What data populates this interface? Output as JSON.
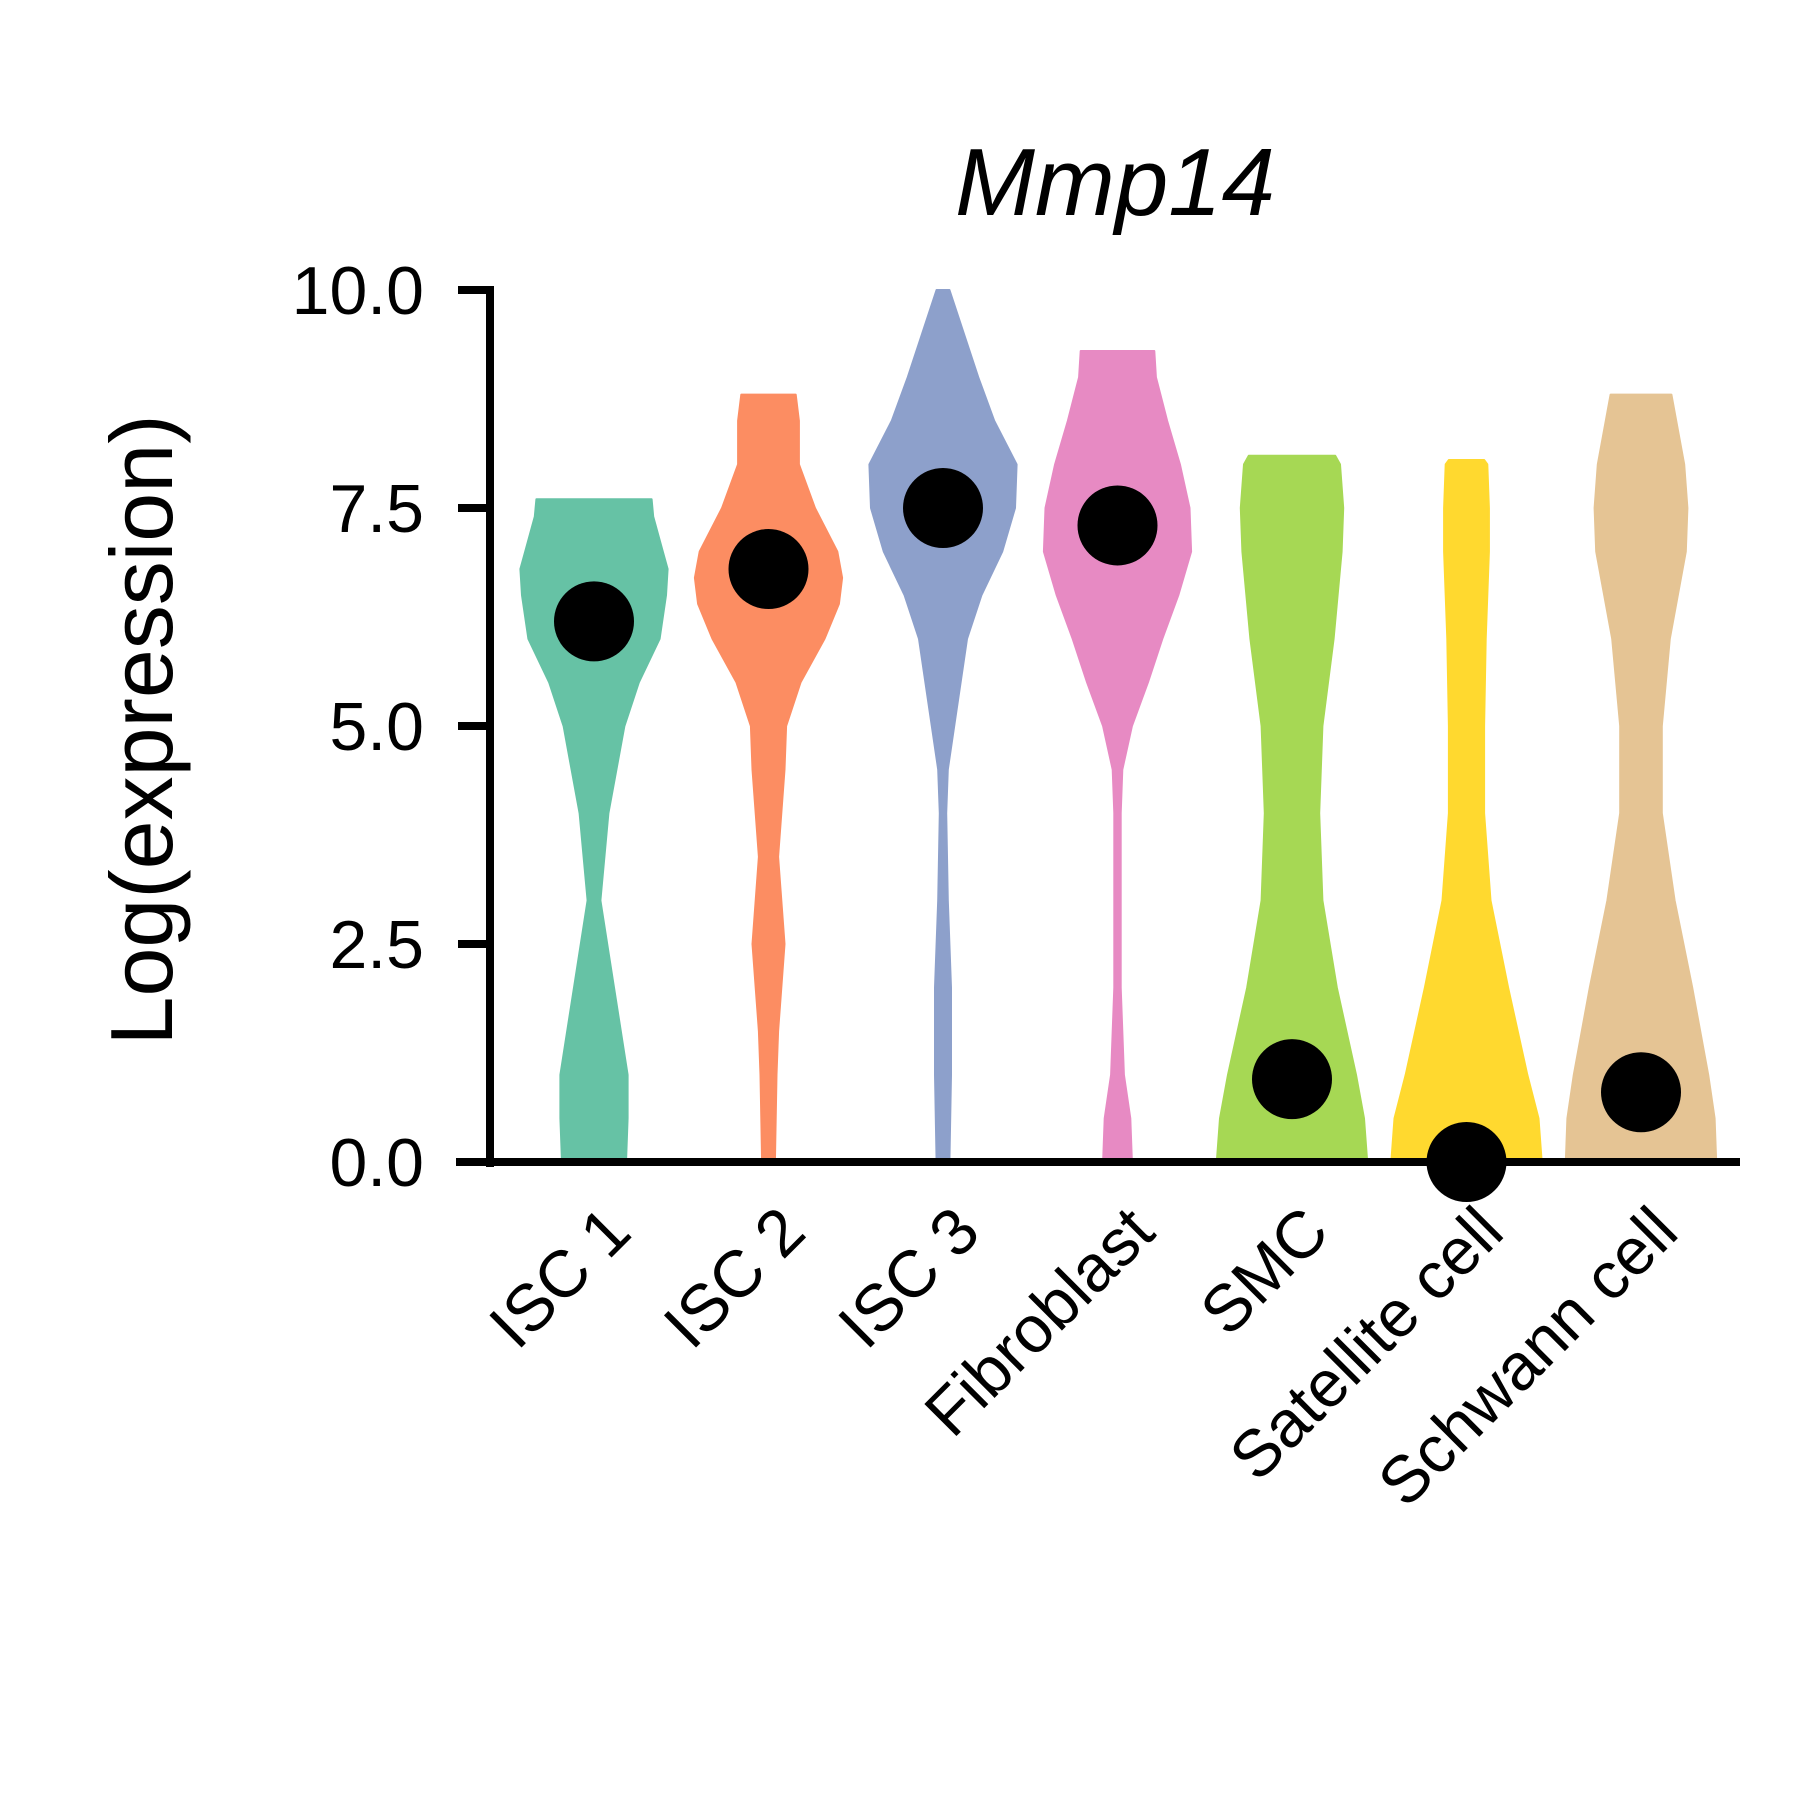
{
  "chart_data": {
    "type": "violin",
    "title": "Mmp14",
    "xlabel": "",
    "ylabel": "Log(expression)",
    "ylim": [
      0,
      10
    ],
    "yticks": [
      "0.0",
      "2.5",
      "5.0",
      "7.5",
      "10.0"
    ],
    "grid": false,
    "legend": "none",
    "categories": [
      "ISC 1",
      "ISC 2",
      "ISC 3",
      "Fibroblast",
      "SMC",
      "Satellite cell",
      "Schwann cell"
    ],
    "colors": [
      "#66C2A5",
      "#FC8D62",
      "#8DA0CB",
      "#E78AC3",
      "#A6D854",
      "#FFD92F",
      "#E5C494"
    ],
    "medians": [
      6.2,
      6.8,
      7.5,
      7.3,
      0.95,
      0.0,
      0.8
    ],
    "violins": [
      {
        "y": [
          0,
          0.5,
          1,
          2,
          3,
          4,
          5,
          5.5,
          6,
          6.5,
          6.8,
          7,
          7.4,
          7.6
        ],
        "w": [
          0.4,
          0.42,
          0.42,
          0.25,
          0.08,
          0.18,
          0.38,
          0.56,
          0.82,
          0.9,
          0.92,
          0.86,
          0.74,
          0.72
        ]
      },
      {
        "y": [
          0,
          1,
          1.5,
          2.5,
          3.5,
          4.5,
          5,
          5.5,
          6,
          6.4,
          6.7,
          7,
          7.5,
          8,
          8.5,
          8.8
        ],
        "w": [
          0.08,
          0.1,
          0.12,
          0.2,
          0.12,
          0.2,
          0.22,
          0.4,
          0.7,
          0.88,
          0.92,
          0.86,
          0.58,
          0.38,
          0.38,
          0.34
        ]
      },
      {
        "y": [
          0,
          1,
          2,
          3,
          4,
          4.5,
          5,
          6,
          6.5,
          7,
          7.5,
          8,
          8.5,
          9,
          9.5,
          10
        ],
        "w": [
          0.08,
          0.1,
          0.1,
          0.06,
          0.04,
          0.06,
          0.14,
          0.3,
          0.48,
          0.74,
          0.9,
          0.92,
          0.64,
          0.44,
          0.26,
          0.08
        ]
      },
      {
        "y": [
          0,
          0.5,
          1,
          2,
          3,
          4,
          4.5,
          5,
          5.5,
          6,
          6.5,
          7,
          7.5,
          8,
          8.5,
          9,
          9.3
        ],
        "w": [
          0.18,
          0.16,
          0.08,
          0.04,
          0.04,
          0.04,
          0.06,
          0.18,
          0.38,
          0.56,
          0.76,
          0.92,
          0.9,
          0.78,
          0.62,
          0.48,
          0.46
        ]
      },
      {
        "y": [
          0,
          0.5,
          1,
          2,
          3,
          4,
          5,
          6,
          7,
          7.5,
          8,
          8.1
        ],
        "w": [
          0.94,
          0.9,
          0.8,
          0.56,
          0.38,
          0.34,
          0.38,
          0.52,
          0.62,
          0.64,
          0.6,
          0.54
        ]
      },
      {
        "y": [
          0,
          0.5,
          1,
          2,
          3,
          4,
          5,
          6,
          6.5,
          7,
          7.5,
          8,
          8.05
        ],
        "w": [
          0.94,
          0.9,
          0.76,
          0.52,
          0.3,
          0.22,
          0.22,
          0.24,
          0.26,
          0.28,
          0.28,
          0.26,
          0.22
        ]
      },
      {
        "y": [
          0,
          0.5,
          1,
          2,
          3,
          4,
          5,
          6,
          7,
          7.5,
          8,
          8.5,
          8.8
        ],
        "w": [
          0.94,
          0.92,
          0.84,
          0.64,
          0.42,
          0.26,
          0.26,
          0.36,
          0.56,
          0.58,
          0.54,
          0.44,
          0.38
        ]
      }
    ]
  }
}
